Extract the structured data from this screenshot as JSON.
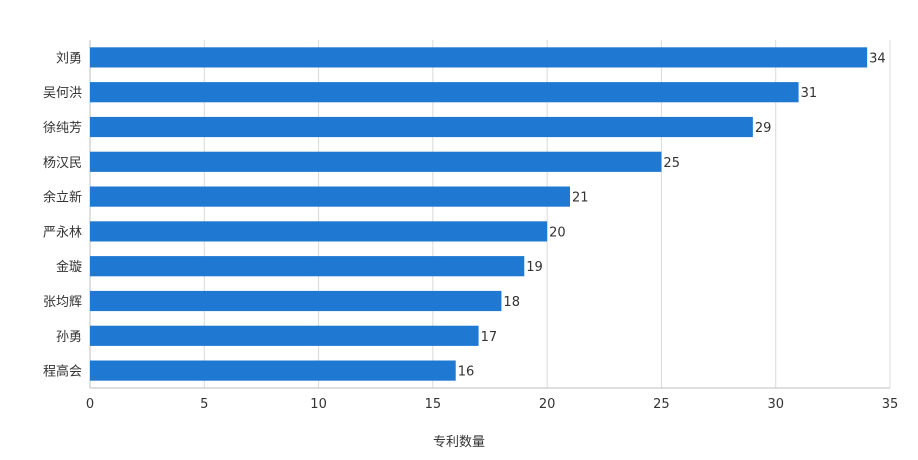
{
  "chart_data": {
    "type": "bar",
    "orientation": "horizontal",
    "categories": [
      "刘勇",
      "吴何洪",
      "徐纯芳",
      "杨汉民",
      "余立新",
      "严永林",
      "金璇",
      "张均辉",
      "孙勇",
      "程高会"
    ],
    "values": [
      34,
      31,
      29,
      25,
      21,
      20,
      19,
      18,
      17,
      16
    ],
    "title": "",
    "xlabel": "专利数量",
    "ylabel": "",
    "xlim": [
      0,
      35
    ],
    "xticks": [
      0,
      5,
      10,
      15,
      20,
      25,
      30,
      35
    ],
    "grid": true,
    "legend": "none",
    "bar_color": "#1f78d1"
  }
}
